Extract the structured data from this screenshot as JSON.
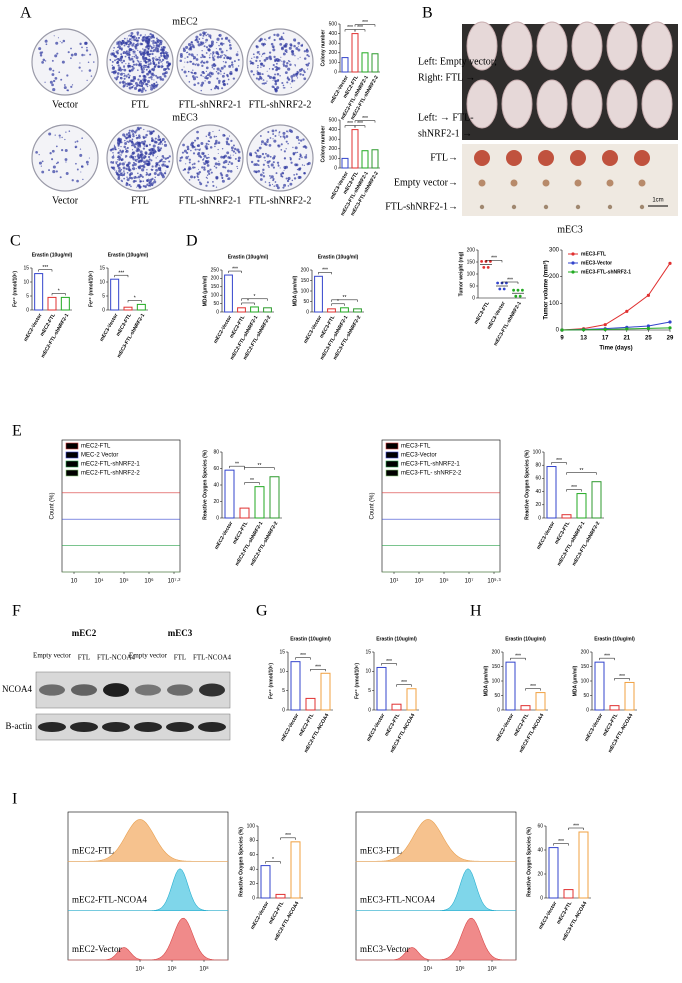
{
  "panel_labels": [
    "A",
    "B",
    "C",
    "D",
    "E",
    "F",
    "G",
    "H",
    "I"
  ],
  "A": {
    "rows": [
      {
        "title": "mEC2",
        "plates": [
          "Vector",
          "FTL",
          "FTL-shNRF2-1",
          "FTL-shNRF2-2"
        ],
        "chart": {
          "ylabel": "Colony number",
          "categories": [
            "mEC2-Vector",
            "mEC2-FTL",
            "mEC2-FTL-shNRF2-1",
            "mEC2-FTL-shNRF2-2"
          ],
          "values": [
            150,
            400,
            200,
            190
          ],
          "colors": [
            "#3344cc",
            "#e03030",
            "#22aa22",
            "#2c9a2c"
          ],
          "ylim": [
            0,
            500
          ],
          "yticks": [
            0,
            100,
            200,
            300,
            400,
            500
          ],
          "sig": [
            "***",
            "***",
            "***"
          ]
        }
      },
      {
        "title": "mEC3",
        "plates": [
          "Vector",
          "FTL",
          "FTL-shNRF2-1",
          "FTL-shNRF2-2"
        ],
        "chart": {
          "ylabel": "Colony number",
          "categories": [
            "mEC3-Vector",
            "mEC3-FTL",
            "mEC3-FTL-shNRF2-1",
            "mEC3-FTL-shNRF2-2"
          ],
          "values": [
            100,
            400,
            180,
            190
          ],
          "colors": [
            "#3344cc",
            "#e03030",
            "#22aa22",
            "#2c9a2c"
          ],
          "ylim": [
            0,
            500
          ],
          "yticks": [
            0,
            100,
            200,
            300,
            400,
            500
          ],
          "sig": [
            "***",
            "***",
            "***"
          ]
        }
      }
    ]
  },
  "B": {
    "photo_labels": [
      "Left: Empty vector;",
      "Right: FTL →",
      "Left: → FTL-",
      "shNRF2-1 →"
    ],
    "tumor_labels": [
      "FTL→",
      "Empty vector→",
      "FTL-shNRF2-1→"
    ],
    "scale": "1cm",
    "caption": "mEC3",
    "weight": {
      "type": "scatter",
      "ylabel": "Tumor weight (mg)",
      "categories": [
        "mEC3-FTL",
        "mEC3-Vector",
        "mEC3-FTL-shNRF2-1"
      ],
      "values": [
        140,
        50,
        20
      ],
      "colors": [
        "#e03030",
        "#3344cc",
        "#22aa22"
      ],
      "ylim": [
        0,
        200
      ],
      "yticks": [
        0,
        50,
        100,
        150,
        200
      ],
      "sig": [
        "***",
        "***"
      ]
    },
    "volume": {
      "type": "line",
      "xlabel": "Time (days)",
      "ylabel": "Tumor volume (mm³)",
      "x": [
        9,
        13,
        17,
        21,
        25,
        29
      ],
      "xlim": [
        9,
        29
      ],
      "xticks": [
        9,
        13,
        17,
        21,
        25,
        29
      ],
      "ylim": [
        0,
        300
      ],
      "yticks": [
        0,
        100,
        200,
        300
      ],
      "series": [
        {
          "name": "mEC3-FTL",
          "color": "#e03030",
          "values": [
            0,
            5,
            20,
            70,
            130,
            250
          ]
        },
        {
          "name": "mEC3-Vector",
          "color": "#3344cc",
          "values": [
            0,
            2,
            5,
            10,
            15,
            30
          ]
        },
        {
          "name": "mEC3-FTL-shNRF2-1",
          "color": "#22aa22",
          "values": [
            0,
            1,
            2,
            4,
            6,
            8
          ]
        }
      ]
    }
  },
  "C": {
    "charts": [
      {
        "title": "Erastin (10ug/ml)",
        "ylabel": "Fe²⁺ (nmol/10⁶)",
        "categories": [
          "mEC2-Vector",
          "mEC2-FTL",
          "mEC2-FTL-shNRF2-1"
        ],
        "values": [
          13,
          4.5,
          4.5
        ],
        "colors": [
          "#3344cc",
          "#e03030",
          "#22aa22"
        ],
        "ylim": [
          0,
          15
        ],
        "yticks": [
          0,
          5,
          10,
          15
        ],
        "sig": [
          "***",
          "*"
        ]
      },
      {
        "title": "Erastin (10ug/ml)",
        "ylabel": "Fe²⁺ (nmol/10⁶)",
        "categories": [
          "mEC3-Vector",
          "mEC3-FTL",
          "mEC3-FTL-shNRF2-1"
        ],
        "values": [
          11,
          1,
          2
        ],
        "colors": [
          "#3344cc",
          "#e03030",
          "#22aa22"
        ],
        "ylim": [
          0,
          15
        ],
        "yticks": [
          0,
          5,
          10,
          15
        ],
        "sig": [
          "***",
          "*"
        ]
      }
    ]
  },
  "D": {
    "charts": [
      {
        "title": "Erastin (10ug/ml)",
        "ylabel": "MDA (μm/ml)",
        "categories": [
          "mEC2-Vector",
          "mEC2-FTL",
          "mEC2-FTL-shNRF2-1",
          "mEC2-FTL-shNRF2-2"
        ],
        "values": [
          220,
          25,
          30,
          25
        ],
        "colors": [
          "#3344cc",
          "#e03030",
          "#22aa22",
          "#2c9a2c"
        ],
        "ylim": [
          0,
          250
        ],
        "yticks": [
          0,
          50,
          100,
          150,
          200,
          250
        ],
        "sig": [
          "***",
          "*",
          "*"
        ]
      },
      {
        "title": "Erastin (10ug/ml)",
        "ylabel": "MDA (μm/ml)",
        "categories": [
          "mEC3-Vector",
          "mEC3-FTL",
          "mEC3-FTL-shNRF2-1",
          "mEC3-FTL-shNRF2-2"
        ],
        "values": [
          170,
          15,
          20,
          15
        ],
        "colors": [
          "#3344cc",
          "#e03030",
          "#22aa22",
          "#2c9a2c"
        ],
        "ylim": [
          0,
          200
        ],
        "yticks": [
          0,
          50,
          100,
          150,
          200
        ],
        "sig": [
          "***",
          "*",
          "**"
        ]
      }
    ]
  },
  "E": {
    "flows": [
      {
        "ylabel": "Count (%)",
        "legend": [
          "mEC2-FTL",
          "MEC-2 Vector",
          "mEC2-FTL-shNRF2-1",
          "mEC2-FTL-shNRF2-2"
        ],
        "xticks": [
          "10",
          "10⁴",
          "10⁵",
          "10⁶",
          "10⁷·²"
        ]
      },
      {
        "ylabel": "Count (%)",
        "legend": [
          "mEC3-FTL",
          "mEC3-Vector",
          "mEC3-FTL-shNRF2-1",
          "mEC3-FTL- shNRF2-2"
        ],
        "xticks": [
          "10¹",
          "10³",
          "10⁵",
          "10⁷",
          "10⁹·³"
        ]
      }
    ],
    "charts": [
      {
        "ylabel": "Reactive Oxygen Species (%)",
        "categories": [
          "mEC2-Vector",
          "mEC2-FTL",
          "mEC2-FTL-shNRF2-1",
          "mEC2-FTL-shNRF2-2"
        ],
        "values": [
          58,
          12,
          38,
          50
        ],
        "colors": [
          "#3344cc",
          "#e03030",
          "#22aa22",
          "#2c9a2c"
        ],
        "ylim": [
          0,
          80
        ],
        "yticks": [
          0,
          20,
          40,
          60,
          80
        ],
        "sig": [
          "**",
          "**",
          "**"
        ]
      },
      {
        "ylabel": "Reactive Oxygen Species (%)",
        "categories": [
          "mEC3-Vector",
          "mEC3-FTL",
          "mEC3-FTL-shNRF2-1",
          "mEC3-FTL-shNRF2-2"
        ],
        "values": [
          78,
          5,
          37,
          55
        ],
        "colors": [
          "#3344cc",
          "#e03030",
          "#22aa22",
          "#2c9a2c"
        ],
        "ylim": [
          0,
          100
        ],
        "yticks": [
          0,
          20,
          40,
          60,
          80,
          100
        ],
        "sig": [
          "***",
          "***",
          "**"
        ]
      }
    ]
  },
  "F": {
    "groups": [
      "mEC2",
      "mEC3"
    ],
    "lanes": [
      "Empty vector",
      "FTL",
      "FTL-NCOA4",
      "Empty vector",
      "FTL",
      "FTL-NCOA4"
    ],
    "rows": [
      "NCOA4",
      "B-actin"
    ]
  },
  "G": {
    "charts": [
      {
        "title": "Erastin (10ug/ml)",
        "ylabel": "Fe²⁺ (nmol/10⁶)",
        "categories": [
          "mEC2-Vector",
          "mEC2-FTL",
          "mEC2-FTL-NCOA4"
        ],
        "values": [
          12.5,
          3,
          9.5
        ],
        "colors": [
          "#3344cc",
          "#e03030",
          "#f0a040"
        ],
        "ylim": [
          0,
          15
        ],
        "yticks": [
          0,
          5,
          10,
          15
        ],
        "sig": [
          "***",
          "***"
        ]
      },
      {
        "title": "Erastin (10ug/ml)",
        "ylabel": "Fe²⁺ (nmol/10⁶)",
        "categories": [
          "mEC3-Vector",
          "mEC3-FTL",
          "mEC3-FTL-NCOA4"
        ],
        "values": [
          11,
          1.5,
          5.5
        ],
        "colors": [
          "#3344cc",
          "#e03030",
          "#f0a040"
        ],
        "ylim": [
          0,
          15
        ],
        "yticks": [
          0,
          5,
          10,
          15
        ],
        "sig": [
          "***",
          "***"
        ]
      }
    ]
  },
  "H": {
    "charts": [
      {
        "title": "Erastin (10ug/ml)",
        "ylabel": "MDA (μm/ml)",
        "categories": [
          "mEC2-Vector",
          "mEC2-FTL",
          "mEC2-FTL-NCOA4"
        ],
        "values": [
          165,
          15,
          60
        ],
        "colors": [
          "#3344cc",
          "#e03030",
          "#f0a040"
        ],
        "ylim": [
          0,
          200
        ],
        "yticks": [
          0,
          50,
          100,
          150,
          200
        ],
        "sig": [
          "***",
          "***"
        ]
      },
      {
        "title": "Erastin (10ug/ml)",
        "ylabel": "MDA (μm/ml)",
        "categories": [
          "mEC3-Vector",
          "mEC3-FTL",
          "mEC3-FTL-NCOA4"
        ],
        "values": [
          165,
          15,
          95
        ],
        "colors": [
          "#3344cc",
          "#e03030",
          "#f0a040"
        ],
        "ylim": [
          0,
          200
        ],
        "yticks": [
          0,
          50,
          100,
          150,
          200
        ],
        "sig": [
          "***",
          "***"
        ]
      }
    ]
  },
  "I": {
    "flows": [
      {
        "legend": [
          "mEC2-FTL",
          "mEC2-FTL-NCOA4",
          "mEC2-Vector"
        ],
        "xticks": [
          "10⁴",
          "10⁶",
          "10⁸"
        ]
      },
      {
        "legend": [
          "mEC3-FTL",
          "mEC3-FTL-NCOA4",
          "mEC3-Vector"
        ],
        "xticks": [
          "10⁴",
          "10⁶",
          "10⁸"
        ]
      }
    ],
    "charts": [
      {
        "ylabel": "Reactive Oxygen Species (%)",
        "categories": [
          "mEC2-Vector",
          "mEC2-FTL",
          "mEC2-FTL-NCOA4"
        ],
        "values": [
          45,
          5,
          78
        ],
        "colors": [
          "#3344cc",
          "#e03030",
          "#f0a040"
        ],
        "ylim": [
          0,
          100
        ],
        "yticks": [
          0,
          20,
          40,
          60,
          80,
          100
        ],
        "sig": [
          "*",
          "***"
        ]
      },
      {
        "ylabel": "Reactive Oxygen Species (%)",
        "categories": [
          "mEC3-Vector",
          "mEC3-FTL",
          "mEC3-FTL-NCOA4"
        ],
        "values": [
          42,
          7,
          55
        ],
        "colors": [
          "#3344cc",
          "#e03030",
          "#f0a040"
        ],
        "ylim": [
          0,
          60
        ],
        "yticks": [
          0,
          20,
          40,
          60
        ],
        "sig": [
          "***",
          "***"
        ]
      }
    ]
  }
}
